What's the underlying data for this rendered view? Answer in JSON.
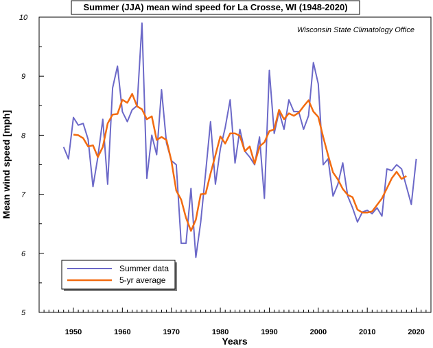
{
  "chart_data": {
    "type": "line",
    "title": "Summer (JJA) mean wind speed for La Crosse, WI (1948-2020)",
    "annotation": "Wisconsin State Climatology Office",
    "xlabel": "Years",
    "ylabel": "Mean wind speed [mph]",
    "xlim": [
      1943,
      2023
    ],
    "ylim": [
      5,
      10
    ],
    "xticks_major": [
      1950,
      1960,
      1970,
      1980,
      1990,
      2000,
      2010,
      2020
    ],
    "yticks_major": [
      5,
      6,
      7,
      8,
      9,
      10
    ],
    "legend_position": "bottom-left",
    "series": [
      {
        "name": "Summer data",
        "color": "#6b68c8",
        "x": [
          1948,
          1949,
          1950,
          1951,
          1952,
          1953,
          1954,
          1955,
          1956,
          1957,
          1958,
          1959,
          1960,
          1961,
          1962,
          1963,
          1964,
          1965,
          1966,
          1967,
          1968,
          1969,
          1970,
          1971,
          1972,
          1973,
          1974,
          1975,
          1976,
          1977,
          1978,
          1979,
          1980,
          1981,
          1982,
          1983,
          1984,
          1985,
          1986,
          1987,
          1988,
          1989,
          1990,
          1991,
          1992,
          1993,
          1994,
          1995,
          1996,
          1997,
          1998,
          1999,
          2000,
          2001,
          2002,
          2003,
          2004,
          2005,
          2006,
          2007,
          2008,
          2009,
          2010,
          2011,
          2012,
          2013,
          2014,
          2015,
          2016,
          2017,
          2018,
          2019,
          2020
        ],
        "y": [
          7.8,
          7.6,
          8.3,
          8.17,
          8.2,
          7.93,
          7.13,
          7.63,
          8.27,
          7.17,
          8.8,
          9.17,
          8.4,
          8.23,
          8.43,
          8.5,
          9.9,
          7.27,
          8.0,
          7.67,
          8.77,
          7.87,
          7.57,
          7.5,
          6.17,
          6.17,
          7.1,
          5.93,
          6.53,
          7.37,
          8.23,
          7.17,
          7.77,
          8.13,
          8.6,
          7.53,
          8.1,
          7.73,
          7.63,
          7.5,
          7.97,
          6.93,
          9.1,
          8.03,
          8.4,
          8.1,
          8.6,
          8.4,
          8.4,
          8.1,
          8.33,
          9.23,
          8.87,
          7.5,
          7.6,
          6.97,
          7.17,
          7.53,
          6.97,
          6.77,
          6.53,
          6.7,
          6.73,
          6.67,
          6.77,
          6.63,
          7.43,
          7.4,
          7.5,
          7.43,
          7.13,
          6.83,
          7.6
        ]
      },
      {
        "name": "5-yr average",
        "color": "#f26b10",
        "x": [
          1950,
          1951,
          1952,
          1953,
          1954,
          1955,
          1956,
          1957,
          1958,
          1959,
          1960,
          1961,
          1962,
          1963,
          1964,
          1965,
          1966,
          1967,
          1968,
          1969,
          1970,
          1971,
          1972,
          1973,
          1974,
          1975,
          1976,
          1977,
          1978,
          1979,
          1980,
          1981,
          1982,
          1983,
          1984,
          1985,
          1986,
          1987,
          1988,
          1989,
          1990,
          1991,
          1992,
          1993,
          1994,
          1995,
          1996,
          1997,
          1998,
          1999,
          2000,
          2001,
          2002,
          2003,
          2004,
          2005,
          2006,
          2007,
          2008,
          2009,
          2010,
          2011,
          2012,
          2013,
          2014,
          2015,
          2016,
          2017,
          2018
        ],
        "y": [
          8.01,
          8.0,
          7.95,
          7.81,
          7.83,
          7.63,
          7.8,
          8.2,
          8.35,
          8.36,
          8.6,
          8.55,
          8.7,
          8.49,
          8.44,
          8.27,
          8.32,
          7.92,
          7.97,
          7.92,
          7.57,
          7.06,
          6.91,
          6.6,
          6.38,
          6.57,
          7.0,
          7.01,
          7.35,
          7.66,
          7.98,
          7.86,
          8.03,
          8.03,
          7.99,
          7.73,
          7.81,
          7.52,
          7.81,
          7.88,
          8.07,
          8.1,
          8.43,
          8.27,
          8.37,
          8.33,
          8.38,
          8.49,
          8.59,
          8.4,
          8.31,
          7.97,
          7.66,
          7.37,
          7.25,
          7.09,
          6.99,
          6.95,
          6.74,
          6.69,
          6.69,
          6.71,
          6.82,
          6.93,
          7.1,
          7.27,
          7.38,
          7.26,
          7.31
        ]
      }
    ]
  }
}
